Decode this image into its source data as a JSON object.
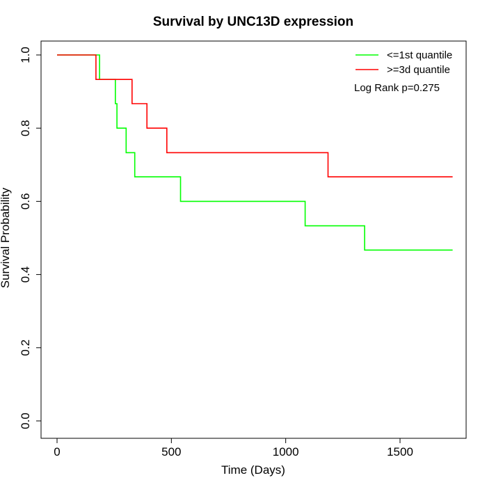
{
  "chart_data": {
    "type": "line",
    "title": "Survival by UNC13D expression",
    "xlabel": "Time (Days)",
    "ylabel": "Survival Probability",
    "xlim": [
      0,
      1730
    ],
    "ylim": [
      0,
      1.0
    ],
    "x_ticks": [
      0,
      500,
      1000,
      1500
    ],
    "y_ticks": [
      0.0,
      0.2,
      0.4,
      0.6,
      0.8,
      1.0
    ],
    "x_tick_labels": [
      "0",
      "500",
      "1000",
      "1500"
    ],
    "y_tick_labels": [
      "0.0",
      "0.2",
      "0.4",
      "0.6",
      "0.8",
      "1.0"
    ],
    "legend_position": "top-right",
    "annotation": "Log Rank p=0.275",
    "grid": false,
    "series": [
      {
        "name": "<=1st quantile",
        "color": "#00ff00",
        "step": true,
        "x": [
          0,
          186,
          186,
          255,
          255,
          262,
          262,
          302,
          302,
          340,
          340,
          540,
          540,
          1085,
          1085,
          1345,
          1345,
          1730
        ],
        "y": [
          1.0,
          1.0,
          0.933,
          0.933,
          0.867,
          0.867,
          0.8,
          0.8,
          0.733,
          0.733,
          0.667,
          0.667,
          0.6,
          0.6,
          0.533,
          0.533,
          0.467,
          0.467
        ]
      },
      {
        "name": ">=3d quantile",
        "color": "#ff0000",
        "step": true,
        "x": [
          0,
          170,
          170,
          328,
          328,
          393,
          393,
          480,
          480,
          1185,
          1185,
          1730
        ],
        "y": [
          1.0,
          1.0,
          0.933,
          0.933,
          0.867,
          0.867,
          0.8,
          0.8,
          0.733,
          0.733,
          0.667,
          0.667
        ]
      }
    ]
  }
}
